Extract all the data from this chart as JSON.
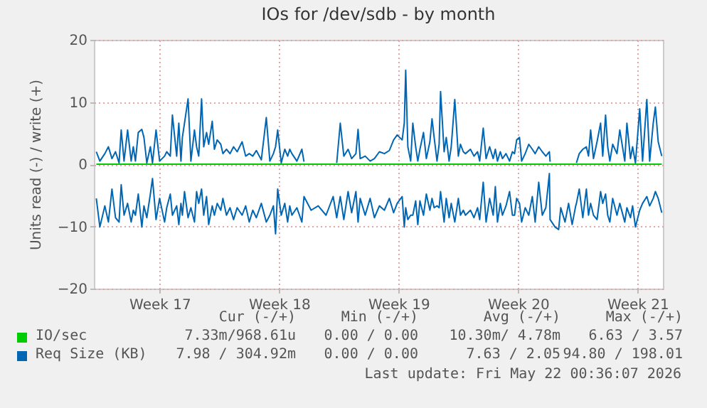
{
  "chart_data": {
    "type": "line",
    "title": "IOs for /dev/sdb - by month",
    "ylabel": "Units read (-) / write (+)",
    "xlim": [
      "2026-04-18T16:36",
      "2026-05-22T00:36"
    ],
    "xticks": [
      {
        "value": "2026-04-22T13:00",
        "label": "Week 17"
      },
      {
        "value": "2026-04-29T13:00",
        "label": "Week 18"
      },
      {
        "value": "2026-05-06T13:00",
        "label": "Week 19"
      },
      {
        "value": "2026-05-13T13:00",
        "label": "Week 20"
      },
      {
        "value": "2026-05-20T13:00",
        "label": "Week 21"
      }
    ],
    "ylim": [
      -20,
      20
    ],
    "yticks": [
      -20,
      -10,
      0,
      10,
      20
    ],
    "grid": true,
    "legend": "bottom",
    "x": [
      "2026-04-18T20:00",
      "2026-04-19T01:00",
      "2026-04-19T08:00",
      "2026-04-19T13:00",
      "2026-04-19T18:00",
      "2026-04-19T23:00",
      "2026-04-20T04:00",
      "2026-04-20T07:00",
      "2026-04-20T11:00",
      "2026-04-20T16:00",
      "2026-04-20T21:00",
      "2026-04-21T00:00",
      "2026-04-21T03:00",
      "2026-04-21T07:00",
      "2026-04-21T12:00",
      "2026-04-21T15:00",
      "2026-04-21T19:00",
      "2026-04-22T00:00",
      "2026-04-22T03:00",
      "2026-04-22T08:00",
      "2026-04-22T13:00",
      "2026-04-22T20:00",
      "2026-04-22T23:00",
      "2026-04-23T04:00",
      "2026-04-23T07:00",
      "2026-04-23T13:00",
      "2026-04-23T16:00",
      "2026-04-23T19:00",
      "2026-04-23T21:00",
      "2026-04-24T00:00",
      "2026-04-24T05:00",
      "2026-04-24T09:00",
      "2026-04-24T14:00",
      "2026-04-24T17:00",
      "2026-04-24T20:00",
      "2026-04-25T00:00",
      "2026-04-25T03:00",
      "2026-04-25T07:00",
      "2026-04-25T10:00",
      "2026-04-25T15:00",
      "2026-04-25T18:00",
      "2026-04-25T22:00",
      "2026-04-26T03:00",
      "2026-04-26T06:00",
      "2026-04-26T11:00",
      "2026-04-26T16:00",
      "2026-04-26T21:00",
      "2026-04-27T02:00",
      "2026-04-27T09:00",
      "2026-04-27T14:00",
      "2026-04-27T19:00",
      "2026-04-28T00:00",
      "2026-04-28T05:00",
      "2026-04-28T12:00",
      "2026-04-28T19:00",
      "2026-04-29T00:00",
      "2026-04-29T05:00",
      "2026-04-29T08:00",
      "2026-04-29T11:00",
      "2026-04-29T16:00",
      "2026-04-29T21:00",
      "2026-04-30T01:00",
      "2026-04-30T04:00",
      "2026-04-30T07:00",
      "2026-04-30T14:00",
      "2026-04-30T21:00",
      "2026-05-01T00:00",
      "2026-05-01T10:00",
      "2026-05-01T20:00",
      "2026-05-02T07:00",
      "2026-05-02T17:00",
      "2026-05-02T22:00",
      "2026-05-03T03:00",
      "2026-05-03T08:00",
      "2026-05-03T14:00",
      "2026-05-03T19:00",
      "2026-05-04T01:00",
      "2026-05-04T04:00",
      "2026-05-04T07:00",
      "2026-05-04T14:00",
      "2026-05-04T21:00",
      "2026-05-05T03:00",
      "2026-05-05T10:00",
      "2026-05-05T17:00",
      "2026-05-06T00:00",
      "2026-05-06T06:00",
      "2026-05-06T11:00",
      "2026-05-06T18:00",
      "2026-05-06T21:00",
      "2026-05-06T23:00",
      "2026-05-07T02:00",
      "2026-05-07T06:00",
      "2026-05-07T09:00",
      "2026-05-07T13:00",
      "2026-05-07T16:00",
      "2026-05-07T19:00",
      "2026-05-08T00:00",
      "2026-05-08T04:00",
      "2026-05-08T09:00",
      "2026-05-08T12:00",
      "2026-05-08T15:00",
      "2026-05-08T19:00",
      "2026-05-08T22:00",
      "2026-05-09T00:00",
      "2026-05-09T05:00",
      "2026-05-09T08:00",
      "2026-05-09T12:00",
      "2026-05-09T15:00",
      "2026-05-09T20:00",
      "2026-05-10T01:00",
      "2026-05-10T04:00",
      "2026-05-10T08:00",
      "2026-05-10T11:00",
      "2026-05-10T18:00",
      "2026-05-10T23:00",
      "2026-05-11T04:00",
      "2026-05-11T07:00",
      "2026-05-11T12:00",
      "2026-05-11T16:00",
      "2026-05-11T21:00",
      "2026-05-12T02:00",
      "2026-05-12T05:00",
      "2026-05-12T08:00",
      "2026-05-12T12:00",
      "2026-05-12T15:00",
      "2026-05-12T20:00",
      "2026-05-13T01:00",
      "2026-05-13T05:00",
      "2026-05-13T08:00",
      "2026-05-13T11:00",
      "2026-05-13T15:00",
      "2026-05-13T18:00",
      "2026-05-13T23:00",
      "2026-05-14T04:00",
      "2026-05-14T09:00",
      "2026-05-14T13:00",
      "2026-05-14T18:00",
      "2026-05-14T23:00",
      "2026-05-15T04:00",
      "2026-05-15T09:00",
      "2026-05-15T10:00",
      "2026-05-15T17:00",
      "2026-05-15T22:00",
      "2026-05-16T01:00",
      "2026-05-16T07:00",
      "2026-05-16T12:00",
      "2026-05-16T17:00",
      "2026-05-16T22:00",
      "2026-05-16T23:00",
      "2026-05-17T03:00",
      "2026-05-17T08:00",
      "2026-05-17T13:00",
      "2026-05-17T16:00",
      "2026-05-17T19:00",
      "2026-05-17T23:00",
      "2026-05-18T04:00",
      "2026-05-18T09:00",
      "2026-05-18T12:00",
      "2026-05-18T16:00",
      "2026-05-18T19:00",
      "2026-05-18T22:00",
      "2026-05-19T02:00",
      "2026-05-19T08:00",
      "2026-05-19T12:00",
      "2026-05-19T19:00",
      "2026-05-19T22:00",
      "2026-05-20T03:00",
      "2026-05-20T06:00",
      "2026-05-20T10:00",
      "2026-05-20T16:00",
      "2026-05-20T20:00",
      "2026-05-21T02:00",
      "2026-05-21T06:00",
      "2026-05-21T11:00",
      "2026-05-21T14:00",
      "2026-05-21T18:00",
      "2026-05-21T23:00"
    ],
    "series": [
      {
        "name": "IO/sec",
        "color": "#00cc00",
        "x": [
          "2026-04-18T20:00",
          "2026-04-22T13:00",
          "2026-04-29T16:00",
          "2026-05-06T18:00",
          "2026-05-13T15:00",
          "2026-05-20T10:00",
          "2026-05-21T23:00"
        ],
        "values": [
          0,
          0,
          0,
          0,
          0,
          0,
          0
        ]
      },
      {
        "name": "Req Size (KB)",
        "color": "#0066b3",
        "values": [
          2.0,
          0.5,
          1.7,
          2.8,
          0.9,
          2.0,
          0.2,
          5.5,
          0.5,
          5.5,
          0.5,
          2.8,
          0.5,
          5.1,
          5.6,
          4.3,
          0.2,
          2.8,
          0.2,
          5.5,
          0.5,
          1.3,
          2.0,
          1.3,
          7.9,
          1.3,
          6.6,
          0.5,
          4.3,
          6.6,
          10.5,
          0.5,
          5.5,
          2.8,
          1.3,
          10.5,
          2.8,
          5.1,
          3.2,
          6.9,
          2.4,
          3.9,
          3.2,
          1.7,
          2.4,
          1.7,
          2.8,
          2.0,
          3.6,
          1.3,
          1.7,
          1.3,
          2.2,
          0.7,
          7.5,
          0.5,
          1.7,
          2.8,
          5.5,
          0.2,
          2.4,
          1.3,
          2.4,
          1.7,
          0.5,
          2.4,
          0.4,
          null,
          null,
          null,
          null,
          0.2,
          6.6,
          1.3,
          2.4,
          0.9,
          1.7,
          5.6,
          0.9,
          1.3,
          0.5,
          0.9,
          2.0,
          1.7,
          2.2,
          3.9,
          4.7,
          3.9,
          6.6,
          15.1,
          2.8,
          0.5,
          6.6,
          2.8,
          0.5,
          2.4,
          5.1,
          0.9,
          3.6,
          7.3,
          4.3,
          0.5,
          3.2,
          11.7,
          2.0,
          4.3,
          0.5,
          2.8,
          10.4,
          1.3,
          3.2,
          2.0,
          1.7,
          2.4,
          1.3,
          2.0,
          0.5,
          5.8,
          0.9,
          2.8,
          0.9,
          2.4,
          0.5,
          2.0,
          0.9,
          1.7,
          0.5,
          2.0,
          1.7,
          3.9,
          4.3,
          0.5,
          1.7,
          3.2,
          2.4,
          1.7,
          2.8,
          2.0,
          1.3,
          2.0,
          0.4,
          null,
          null,
          null,
          null,
          null,
          null,
          null,
          0.2,
          1.7,
          2.4,
          2.8,
          1.3,
          5.5,
          0.9,
          3.6,
          6.6,
          1.3,
          7.9,
          2.8,
          0.5,
          3.2,
          1.7,
          5.5,
          0.5,
          6.6,
          0.9,
          2.8,
          0.2,
          8.9,
          0.5,
          10.4,
          0.5,
          6.6,
          9.2,
          3.6,
          1.3
        ]
      },
      {
        "color": "#0066b3",
        "values": [
          -5.5,
          -10.1,
          -6.7,
          -9.3,
          -4.0,
          -8.6,
          -9.3,
          -3.3,
          -8.2,
          -6.3,
          -9.3,
          -7.4,
          -8.2,
          -4.8,
          -10.1,
          -6.7,
          -8.6,
          -4.8,
          -2.3,
          -8.9,
          -5.5,
          -9.3,
          -7.0,
          -4.8,
          -8.2,
          -6.7,
          -9.7,
          -6.3,
          -8.2,
          -4.4,
          -8.6,
          -7.0,
          -9.3,
          -4.4,
          -6.3,
          -4.0,
          -8.2,
          -5.2,
          -9.7,
          -6.7,
          -8.2,
          -6.3,
          -7.4,
          -5.5,
          -8.2,
          -7.0,
          -8.9,
          -7.0,
          -8.2,
          -6.7,
          -9.3,
          -7.4,
          -8.6,
          -6.3,
          -9.3,
          -8.2,
          -6.7,
          -11.2,
          -4.0,
          -8.2,
          -6.3,
          -9.3,
          -6.7,
          -8.2,
          -7.0,
          -9.3,
          -5.2,
          -7.4,
          -6.7,
          -8.2,
          -5.2,
          -8.6,
          -5.2,
          -8.9,
          -4.4,
          -7.8,
          -4.4,
          -9.3,
          -5.5,
          -8.2,
          -5.5,
          -8.6,
          -6.7,
          -7.4,
          -5.5,
          -7.8,
          -6.3,
          -5.2,
          -10.1,
          -7.0,
          -8.9,
          -8.2,
          -8.2,
          -5.9,
          -9.7,
          -5.9,
          -8.2,
          -4.8,
          -7.4,
          -5.5,
          -7.0,
          -6.7,
          -7.0,
          -4.4,
          -9.3,
          -5.5,
          -8.6,
          -6.3,
          -9.3,
          -5.5,
          -8.2,
          -7.4,
          -8.2,
          -7.4,
          -8.6,
          -7.0,
          -8.9,
          -2.9,
          -9.3,
          -5.5,
          -8.2,
          -3.6,
          -9.3,
          -6.3,
          -8.2,
          -6.7,
          -4.4,
          -8.2,
          -8.2,
          -5.5,
          -6.3,
          -9.3,
          -7.0,
          -8.2,
          -5.2,
          -9.3,
          -2.9,
          -8.2,
          -7.0,
          -1.5,
          -8.9,
          -10.1,
          -10.5,
          -7.0,
          -9.3,
          -6.3,
          -9.7,
          -6.7,
          -6.3,
          -4.0,
          -8.6,
          -4.0,
          -8.2,
          -6.3,
          -8.2,
          -8.9,
          -4.4,
          -6.3,
          -4.8,
          -8.2,
          -9.3,
          -5.5,
          -8.2,
          -6.3,
          -9.3,
          -7.0,
          -8.6,
          -6.7,
          -10.1,
          -7.4,
          -6.3,
          -5.2,
          -6.7,
          -5.5,
          -4.4,
          -5.5,
          -7.8
        ]
      }
    ],
    "annotations": [
      "Cur (-/+)",
      "Min (-/+)",
      "Avg (-/+)",
      "Max (-/+)",
      "7.33m/968.61u",
      "0.00 / 0.00",
      "10.30m/ 4.78m",
      "6.63 / 3.57",
      "7.98 / 304.92m",
      "0.00 / 0.00",
      "7.63 / 2.05",
      "94.80 / 198.01",
      "Last update: Fri May 22 00:36:07 2026"
    ]
  }
}
